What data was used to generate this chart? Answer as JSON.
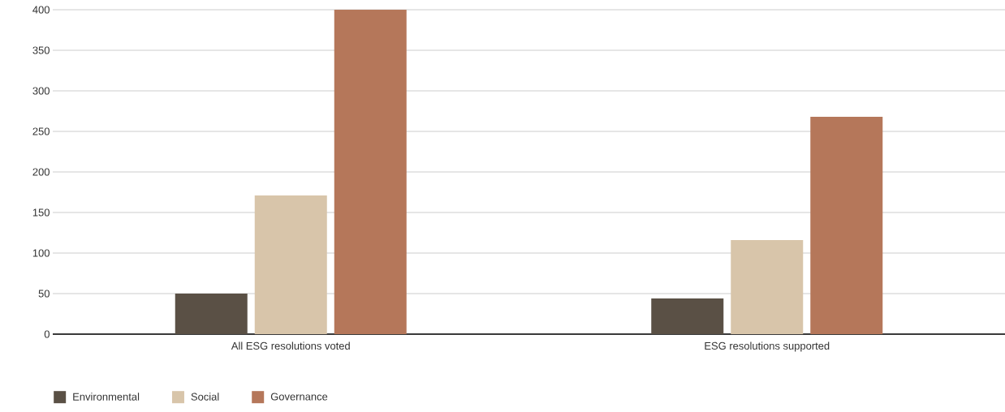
{
  "chart_data": {
    "type": "bar",
    "categories": [
      "All ESG resolutions voted",
      "ESG resolutions supported"
    ],
    "series": [
      {
        "name": "Environmental",
        "color": "#5a5045",
        "values": [
          50,
          44
        ]
      },
      {
        "name": "Social",
        "color": "#d8c5aa",
        "values": [
          171,
          116
        ]
      },
      {
        "name": "Governance",
        "color": "#b5775a",
        "values": [
          400,
          268
        ]
      }
    ],
    "ylim": [
      0,
      400
    ],
    "yticks": [
      0,
      50,
      100,
      150,
      200,
      250,
      300,
      350,
      400
    ],
    "grid": "y",
    "legend": "bottom"
  }
}
